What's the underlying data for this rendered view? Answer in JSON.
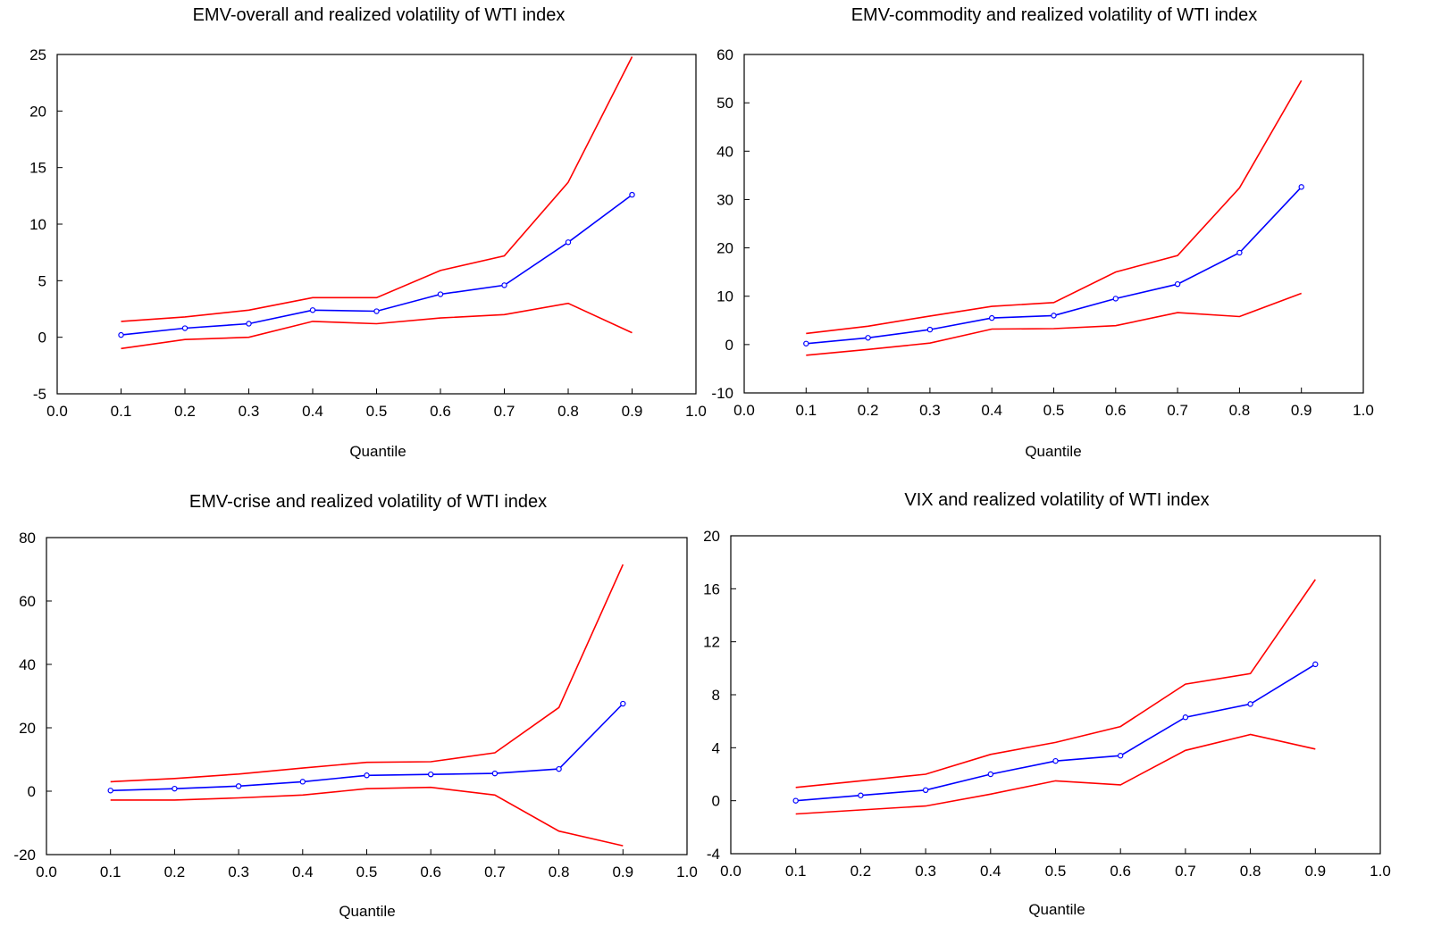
{
  "chart_data": [
    {
      "type": "line",
      "title": "EMV-overall and realized volatility of WTI index",
      "xlabel": "Quantile",
      "ylabel": "",
      "xlim": [
        0.0,
        1.0
      ],
      "ylim": [
        -5,
        25
      ],
      "xticks": [
        "0.0",
        "0.1",
        "0.2",
        "0.3",
        "0.4",
        "0.5",
        "0.6",
        "0.7",
        "0.8",
        "0.9",
        "1.0"
      ],
      "yticks": [
        "-5",
        "0",
        "5",
        "10",
        "15",
        "20",
        "25"
      ],
      "grid": false,
      "x": [
        0.1,
        0.2,
        0.3,
        0.4,
        0.5,
        0.6,
        0.7,
        0.8,
        0.9
      ],
      "series": [
        {
          "role": "estimate",
          "color": "#0000ff",
          "markers": true,
          "values": [
            0.2,
            0.8,
            1.2,
            2.4,
            2.3,
            3.8,
            4.6,
            8.4,
            12.6
          ]
        },
        {
          "role": "upper",
          "color": "#ff0000",
          "markers": false,
          "values": [
            1.4,
            1.8,
            2.4,
            3.5,
            3.5,
            5.9,
            7.2,
            13.7,
            24.8
          ]
        },
        {
          "role": "lower",
          "color": "#ff0000",
          "markers": false,
          "values": [
            -1.0,
            -0.2,
            0.0,
            1.4,
            1.2,
            1.7,
            2.0,
            3.0,
            0.4
          ]
        }
      ]
    },
    {
      "type": "line",
      "title": "EMV-commodity and realized volatility of WTI index",
      "xlabel": "Quantile",
      "ylabel": "",
      "xlim": [
        0.0,
        1.0
      ],
      "ylim": [
        -10,
        60
      ],
      "xticks": [
        "0.0",
        "0.1",
        "0.2",
        "0.3",
        "0.4",
        "0.5",
        "0.6",
        "0.7",
        "0.8",
        "0.9",
        "1.0"
      ],
      "yticks": [
        "-10",
        "0",
        "10",
        "20",
        "30",
        "40",
        "50",
        "60"
      ],
      "grid": false,
      "x": [
        0.1,
        0.2,
        0.3,
        0.4,
        0.5,
        0.6,
        0.7,
        0.8,
        0.9
      ],
      "series": [
        {
          "role": "estimate",
          "color": "#0000ff",
          "markers": true,
          "values": [
            0.2,
            1.4,
            3.1,
            5.5,
            6.0,
            9.5,
            12.5,
            19.0,
            32.6
          ]
        },
        {
          "role": "upper",
          "color": "#ff0000",
          "markers": false,
          "values": [
            2.3,
            3.8,
            5.9,
            7.9,
            8.7,
            15.0,
            18.4,
            32.4,
            54.6
          ]
        },
        {
          "role": "lower",
          "color": "#ff0000",
          "markers": false,
          "values": [
            -2.2,
            -1.0,
            0.3,
            3.2,
            3.3,
            3.9,
            6.6,
            5.8,
            10.6
          ]
        }
      ]
    },
    {
      "type": "line",
      "title": "EMV-crise and realized volatility of WTI index",
      "xlabel": "Quantile",
      "ylabel": "",
      "xlim": [
        0.0,
        1.0
      ],
      "ylim": [
        -20,
        80
      ],
      "xticks": [
        "0.0",
        "0.1",
        "0.2",
        "0.3",
        "0.4",
        "0.5",
        "0.6",
        "0.7",
        "0.8",
        "0.9",
        "1.0"
      ],
      "yticks": [
        "-20",
        "0",
        "20",
        "40",
        "60",
        "80"
      ],
      "grid": false,
      "x": [
        0.1,
        0.2,
        0.3,
        0.4,
        0.5,
        0.6,
        0.7,
        0.8,
        0.9
      ],
      "series": [
        {
          "role": "estimate",
          "color": "#0000ff",
          "markers": true,
          "values": [
            0.2,
            0.8,
            1.6,
            3.0,
            5.0,
            5.3,
            5.6,
            7.0,
            27.6
          ]
        },
        {
          "role": "upper",
          "color": "#ff0000",
          "markers": false,
          "values": [
            3.0,
            4.0,
            5.4,
            7.3,
            9.1,
            9.3,
            12.1,
            26.4,
            71.5
          ]
        },
        {
          "role": "lower",
          "color": "#ff0000",
          "markers": false,
          "values": [
            -2.8,
            -2.8,
            -2.1,
            -1.2,
            0.8,
            1.2,
            -1.2,
            -12.6,
            -17.2
          ]
        }
      ]
    },
    {
      "type": "line",
      "title": "VIX and realized volatility of WTI index",
      "xlabel": "Quantile",
      "ylabel": "",
      "xlim": [
        0.0,
        1.0
      ],
      "ylim": [
        -4,
        20
      ],
      "xticks": [
        "0.0",
        "0.1",
        "0.2",
        "0.3",
        "0.4",
        "0.5",
        "0.6",
        "0.7",
        "0.8",
        "0.9",
        "1.0"
      ],
      "yticks": [
        "-4",
        "0",
        "4",
        "8",
        "12",
        "16",
        "20"
      ],
      "grid": false,
      "x": [
        0.1,
        0.2,
        0.3,
        0.4,
        0.5,
        0.6,
        0.7,
        0.8,
        0.9
      ],
      "series": [
        {
          "role": "estimate",
          "color": "#0000ff",
          "markers": true,
          "values": [
            0.0,
            0.4,
            0.8,
            2.0,
            3.0,
            3.4,
            6.3,
            7.3,
            10.3
          ]
        },
        {
          "role": "upper",
          "color": "#ff0000",
          "markers": false,
          "values": [
            1.0,
            1.5,
            2.0,
            3.5,
            4.4,
            5.6,
            8.8,
            9.6,
            16.7
          ]
        },
        {
          "role": "lower",
          "color": "#ff0000",
          "markers": false,
          "values": [
            -1.0,
            -0.7,
            -0.4,
            0.5,
            1.5,
            1.2,
            3.8,
            5.0,
            3.9
          ]
        }
      ]
    }
  ]
}
